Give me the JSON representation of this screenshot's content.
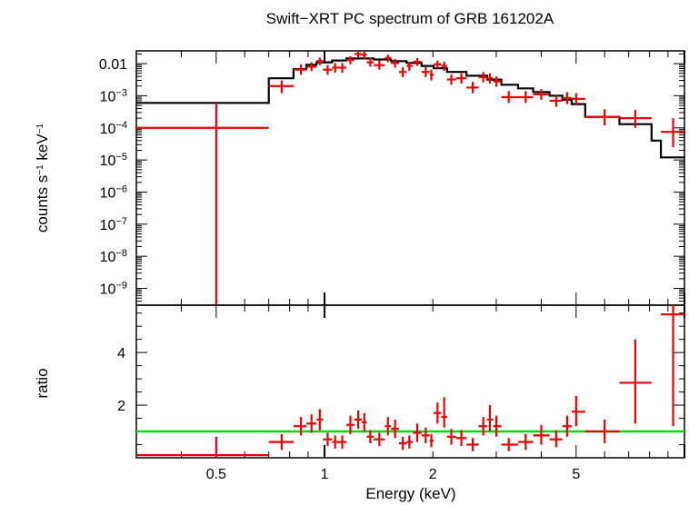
{
  "title": "Swift−XRT PC spectrum of GRB 161202A",
  "chart_data": [
    {
      "type": "scatter",
      "panel": "spectrum",
      "title": "Swift−XRT PC spectrum of GRB 161202A",
      "xlabel": "Energy (keV)",
      "ylabel_main": "counts s",
      "ylabel_sup1": "−1",
      "ylabel_mid": " keV",
      "ylabel_sup2": "−1",
      "xscale": "log",
      "yscale": "log",
      "xlim": [
        0.3,
        10
      ],
      "ylim": [
        3e-10,
        0.025
      ],
      "y_ticks": [
        {
          "value": 0.01,
          "mant": "0.01",
          "exp": ""
        },
        {
          "value": 0.001,
          "mant": "10",
          "exp": "−3"
        },
        {
          "value": 0.0001,
          "mant": "10",
          "exp": "−4"
        },
        {
          "value": 1e-05,
          "mant": "10",
          "exp": "−5"
        },
        {
          "value": 1e-06,
          "mant": "10",
          "exp": "−6"
        },
        {
          "value": 1e-07,
          "mant": "10",
          "exp": "−7"
        },
        {
          "value": 1e-08,
          "mant": "10",
          "exp": "−8"
        },
        {
          "value": 1e-09,
          "mant": "10",
          "exp": "−9"
        }
      ],
      "colors": {
        "data": "#ee0000",
        "model": "#000000"
      },
      "data_points": [
        {
          "x": 0.5,
          "xlo": 0.3,
          "xhi": 0.7,
          "y": 0.0001,
          "ylo": 3e-10,
          "yhi": 0.0006
        },
        {
          "x": 0.76,
          "xlo": 0.7,
          "xhi": 0.82,
          "y": 0.002,
          "ylo": 0.0012,
          "yhi": 0.003
        },
        {
          "x": 0.86,
          "xlo": 0.82,
          "xhi": 0.89,
          "y": 0.0065,
          "ylo": 0.0045,
          "yhi": 0.0095
        },
        {
          "x": 0.92,
          "xlo": 0.89,
          "xhi": 0.95,
          "y": 0.008,
          "ylo": 0.0058,
          "yhi": 0.011
        },
        {
          "x": 0.97,
          "xlo": 0.95,
          "xhi": 0.99,
          "y": 0.012,
          "ylo": 0.009,
          "yhi": 0.0155
        },
        {
          "x": 1.02,
          "xlo": 0.99,
          "xhi": 1.05,
          "y": 0.0065,
          "ylo": 0.0045,
          "yhi": 0.009
        },
        {
          "x": 1.07,
          "xlo": 1.05,
          "xhi": 1.09,
          "y": 0.0075,
          "ylo": 0.0052,
          "yhi": 0.0105
        },
        {
          "x": 1.12,
          "xlo": 1.09,
          "xhi": 1.15,
          "y": 0.0075,
          "ylo": 0.0052,
          "yhi": 0.0105
        },
        {
          "x": 1.18,
          "xlo": 1.15,
          "xhi": 1.21,
          "y": 0.013,
          "ylo": 0.0095,
          "yhi": 0.017
        },
        {
          "x": 1.24,
          "xlo": 1.21,
          "xhi": 1.27,
          "y": 0.02,
          "ylo": 0.015,
          "yhi": 0.025
        },
        {
          "x": 1.29,
          "xlo": 1.27,
          "xhi": 1.31,
          "y": 0.019,
          "ylo": 0.014,
          "yhi": 0.024
        },
        {
          "x": 1.34,
          "xlo": 1.31,
          "xhi": 1.37,
          "y": 0.011,
          "ylo": 0.008,
          "yhi": 0.015
        },
        {
          "x": 1.42,
          "xlo": 1.37,
          "xhi": 1.47,
          "y": 0.009,
          "ylo": 0.0065,
          "yhi": 0.0125
        },
        {
          "x": 1.5,
          "xlo": 1.47,
          "xhi": 1.53,
          "y": 0.015,
          "ylo": 0.011,
          "yhi": 0.019
        },
        {
          "x": 1.57,
          "xlo": 1.53,
          "xhi": 1.61,
          "y": 0.0105,
          "ylo": 0.0075,
          "yhi": 0.014
        },
        {
          "x": 1.65,
          "xlo": 1.61,
          "xhi": 1.69,
          "y": 0.0055,
          "ylo": 0.0038,
          "yhi": 0.0078
        },
        {
          "x": 1.72,
          "xlo": 1.69,
          "xhi": 1.76,
          "y": 0.0085,
          "ylo": 0.006,
          "yhi": 0.0115
        },
        {
          "x": 1.81,
          "xlo": 1.76,
          "xhi": 1.86,
          "y": 0.0115,
          "ylo": 0.0085,
          "yhi": 0.015
        },
        {
          "x": 1.91,
          "xlo": 1.86,
          "xhi": 1.96,
          "y": 0.0055,
          "ylo": 0.0038,
          "yhi": 0.0078
        },
        {
          "x": 1.98,
          "xlo": 1.96,
          "xhi": 2.01,
          "y": 0.0045,
          "ylo": 0.003,
          "yhi": 0.0065
        },
        {
          "x": 2.06,
          "xlo": 2.01,
          "xhi": 2.11,
          "y": 0.0095,
          "ylo": 0.007,
          "yhi": 0.0125
        },
        {
          "x": 2.15,
          "xlo": 2.11,
          "xhi": 2.19,
          "y": 0.0085,
          "ylo": 0.006,
          "yhi": 0.0115
        },
        {
          "x": 2.25,
          "xlo": 2.19,
          "xhi": 2.32,
          "y": 0.0032,
          "ylo": 0.0022,
          "yhi": 0.0046
        },
        {
          "x": 2.4,
          "xlo": 2.32,
          "xhi": 2.48,
          "y": 0.0035,
          "ylo": 0.0024,
          "yhi": 0.005
        },
        {
          "x": 2.58,
          "xlo": 2.48,
          "xhi": 2.68,
          "y": 0.0018,
          "ylo": 0.0012,
          "yhi": 0.0027
        },
        {
          "x": 2.76,
          "xlo": 2.68,
          "xhi": 2.83,
          "y": 0.0038,
          "ylo": 0.0026,
          "yhi": 0.0055
        },
        {
          "x": 2.88,
          "xlo": 2.83,
          "xhi": 2.94,
          "y": 0.0035,
          "ylo": 0.0024,
          "yhi": 0.005
        },
        {
          "x": 3.0,
          "xlo": 2.94,
          "xhi": 3.1,
          "y": 0.0028,
          "ylo": 0.0019,
          "yhi": 0.004
        },
        {
          "x": 3.25,
          "xlo": 3.1,
          "xhi": 3.45,
          "y": 0.0009,
          "ylo": 0.0006,
          "yhi": 0.0014
        },
        {
          "x": 3.62,
          "xlo": 3.45,
          "xhi": 3.8,
          "y": 0.0009,
          "ylo": 0.0006,
          "yhi": 0.0014
        },
        {
          "x": 4.0,
          "xlo": 3.8,
          "xhi": 4.22,
          "y": 0.0011,
          "ylo": 0.00075,
          "yhi": 0.0016
        },
        {
          "x": 4.4,
          "xlo": 4.22,
          "xhi": 4.58,
          "y": 0.0007,
          "ylo": 0.00045,
          "yhi": 0.0011
        },
        {
          "x": 4.72,
          "xlo": 4.58,
          "xhi": 4.86,
          "y": 0.00085,
          "ylo": 0.00055,
          "yhi": 0.0013
        },
        {
          "x": 5.0,
          "xlo": 4.86,
          "xhi": 5.3,
          "y": 0.0008,
          "ylo": 0.0005,
          "yhi": 0.0012
        },
        {
          "x": 6.0,
          "xlo": 5.3,
          "xhi": 6.6,
          "y": 0.00022,
          "ylo": 0.00012,
          "yhi": 0.00038
        },
        {
          "x": 7.3,
          "xlo": 6.6,
          "xhi": 8.1,
          "y": 0.0002,
          "ylo": 0.0001,
          "yhi": 0.00036
        },
        {
          "x": 9.3,
          "xlo": 8.6,
          "xhi": 10.0,
          "y": 7.5e-05,
          "ylo": 2.5e-05,
          "yhi": 0.0002
        }
      ],
      "model_steps": [
        {
          "xlo": 0.3,
          "xhi": 0.7,
          "y": 0.0006
        },
        {
          "xlo": 0.7,
          "xhi": 0.82,
          "y": 0.0035
        },
        {
          "xlo": 0.82,
          "xhi": 0.89,
          "y": 0.0068
        },
        {
          "xlo": 0.89,
          "xhi": 0.95,
          "y": 0.0092
        },
        {
          "xlo": 0.95,
          "xhi": 1.05,
          "y": 0.011
        },
        {
          "xlo": 1.05,
          "xhi": 1.15,
          "y": 0.0125
        },
        {
          "xlo": 1.15,
          "xhi": 1.37,
          "y": 0.0145
        },
        {
          "xlo": 1.37,
          "xhi": 1.53,
          "y": 0.0135
        },
        {
          "xlo": 1.53,
          "xhi": 1.69,
          "y": 0.012
        },
        {
          "xlo": 1.69,
          "xhi": 1.86,
          "y": 0.0105
        },
        {
          "xlo": 1.86,
          "xhi": 2.01,
          "y": 0.0085
        },
        {
          "xlo": 2.01,
          "xhi": 2.19,
          "y": 0.0072
        },
        {
          "xlo": 2.19,
          "xhi": 2.48,
          "y": 0.0055
        },
        {
          "xlo": 2.48,
          "xhi": 2.83,
          "y": 0.0042
        },
        {
          "xlo": 2.83,
          "xhi": 3.1,
          "y": 0.0032
        },
        {
          "xlo": 3.1,
          "xhi": 3.45,
          "y": 0.0022
        },
        {
          "xlo": 3.45,
          "xhi": 3.8,
          "y": 0.0017
        },
        {
          "xlo": 3.8,
          "xhi": 4.22,
          "y": 0.0013
        },
        {
          "xlo": 4.22,
          "xhi": 4.58,
          "y": 0.001
        },
        {
          "xlo": 4.58,
          "xhi": 4.86,
          "y": 0.00075
        },
        {
          "xlo": 4.86,
          "xhi": 5.3,
          "y": 0.00055
        },
        {
          "xlo": 5.3,
          "xhi": 6.6,
          "y": 0.00022
        },
        {
          "xlo": 6.6,
          "xhi": 8.1,
          "y": 0.00013
        },
        {
          "xlo": 8.1,
          "xhi": 8.6,
          "y": 4e-05
        },
        {
          "xlo": 8.6,
          "xhi": 10.0,
          "y": 1.2e-05
        }
      ]
    },
    {
      "type": "scatter",
      "panel": "ratio",
      "xlabel": "Energy (keV)",
      "ylabel": "ratio",
      "xscale": "log",
      "yscale": "linear",
      "xlim": [
        0.3,
        10
      ],
      "ylim": [
        0.0,
        5.8
      ],
      "y_ticks": [
        {
          "value": 2,
          "label": "2"
        },
        {
          "value": 4,
          "label": "4"
        }
      ],
      "x_ticks": [
        {
          "value": 0.5,
          "label": "0.5"
        },
        {
          "value": 1,
          "label": "1"
        },
        {
          "value": 2,
          "label": "2"
        },
        {
          "value": 5,
          "label": "5"
        }
      ],
      "reference_line": 1.0,
      "colors": {
        "data": "#ee0000",
        "reference": "#00dd00"
      },
      "data_points": [
        {
          "x": 0.5,
          "xlo": 0.3,
          "xhi": 0.7,
          "y": 0.1,
          "ylo": 0.0,
          "yhi": 0.8
        },
        {
          "x": 0.76,
          "xlo": 0.7,
          "xhi": 0.82,
          "y": 0.6,
          "ylo": 0.3,
          "yhi": 0.9
        },
        {
          "x": 0.86,
          "xlo": 0.82,
          "xhi": 0.89,
          "y": 1.2,
          "ylo": 0.85,
          "yhi": 1.55
        },
        {
          "x": 0.92,
          "xlo": 0.89,
          "xhi": 0.95,
          "y": 1.3,
          "ylo": 0.95,
          "yhi": 1.65
        },
        {
          "x": 0.97,
          "xlo": 0.95,
          "xhi": 0.99,
          "y": 1.45,
          "ylo": 1.05,
          "yhi": 1.85
        },
        {
          "x": 1.02,
          "xlo": 0.99,
          "xhi": 1.05,
          "y": 0.7,
          "ylo": 0.45,
          "yhi": 0.95
        },
        {
          "x": 1.07,
          "xlo": 1.05,
          "xhi": 1.09,
          "y": 0.6,
          "ylo": 0.35,
          "yhi": 0.85
        },
        {
          "x": 1.12,
          "xlo": 1.09,
          "xhi": 1.15,
          "y": 0.6,
          "ylo": 0.35,
          "yhi": 0.85
        },
        {
          "x": 1.18,
          "xlo": 1.15,
          "xhi": 1.21,
          "y": 1.25,
          "ylo": 0.9,
          "yhi": 1.6
        },
        {
          "x": 1.24,
          "xlo": 1.21,
          "xhi": 1.27,
          "y": 1.45,
          "ylo": 1.1,
          "yhi": 1.8
        },
        {
          "x": 1.29,
          "xlo": 1.27,
          "xhi": 1.31,
          "y": 1.35,
          "ylo": 1.0,
          "yhi": 1.7
        },
        {
          "x": 1.34,
          "xlo": 1.31,
          "xhi": 1.37,
          "y": 0.8,
          "ylo": 0.55,
          "yhi": 1.05
        },
        {
          "x": 1.42,
          "xlo": 1.37,
          "xhi": 1.47,
          "y": 0.7,
          "ylo": 0.45,
          "yhi": 0.95
        },
        {
          "x": 1.5,
          "xlo": 1.47,
          "xhi": 1.53,
          "y": 1.2,
          "ylo": 0.85,
          "yhi": 1.55
        },
        {
          "x": 1.57,
          "xlo": 1.53,
          "xhi": 1.61,
          "y": 1.1,
          "ylo": 0.75,
          "yhi": 1.45
        },
        {
          "x": 1.65,
          "xlo": 1.61,
          "xhi": 1.69,
          "y": 0.55,
          "ylo": 0.3,
          "yhi": 0.8
        },
        {
          "x": 1.72,
          "xlo": 1.69,
          "xhi": 1.76,
          "y": 0.6,
          "ylo": 0.35,
          "yhi": 0.85
        },
        {
          "x": 1.81,
          "xlo": 1.76,
          "xhi": 1.86,
          "y": 0.95,
          "ylo": 0.6,
          "yhi": 1.3
        },
        {
          "x": 1.91,
          "xlo": 1.86,
          "xhi": 1.96,
          "y": 0.85,
          "ylo": 0.55,
          "yhi": 1.15
        },
        {
          "x": 1.98,
          "xlo": 1.96,
          "xhi": 2.01,
          "y": 0.65,
          "ylo": 0.4,
          "yhi": 0.9
        },
        {
          "x": 2.06,
          "xlo": 2.01,
          "xhi": 2.11,
          "y": 1.7,
          "ylo": 1.3,
          "yhi": 2.1
        },
        {
          "x": 2.15,
          "xlo": 2.11,
          "xhi": 2.19,
          "y": 1.55,
          "ylo": 1.15,
          "yhi": 2.3
        },
        {
          "x": 2.25,
          "xlo": 2.19,
          "xhi": 2.32,
          "y": 0.8,
          "ylo": 0.5,
          "yhi": 1.1
        },
        {
          "x": 2.4,
          "xlo": 2.32,
          "xhi": 2.48,
          "y": 0.75,
          "ylo": 0.45,
          "yhi": 1.05
        },
        {
          "x": 2.58,
          "xlo": 2.48,
          "xhi": 2.68,
          "y": 0.5,
          "ylo": 0.25,
          "yhi": 0.75
        },
        {
          "x": 2.76,
          "xlo": 2.68,
          "xhi": 2.83,
          "y": 1.2,
          "ylo": 0.85,
          "yhi": 1.55
        },
        {
          "x": 2.88,
          "xlo": 2.83,
          "xhi": 2.94,
          "y": 1.45,
          "ylo": 1.0,
          "yhi": 2.0
        },
        {
          "x": 3.0,
          "xlo": 2.94,
          "xhi": 3.1,
          "y": 1.2,
          "ylo": 0.8,
          "yhi": 1.6
        },
        {
          "x": 3.25,
          "xlo": 3.1,
          "xhi": 3.45,
          "y": 0.5,
          "ylo": 0.25,
          "yhi": 0.75
        },
        {
          "x": 3.62,
          "xlo": 3.45,
          "xhi": 3.8,
          "y": 0.6,
          "ylo": 0.3,
          "yhi": 0.9
        },
        {
          "x": 4.0,
          "xlo": 3.8,
          "xhi": 4.22,
          "y": 0.85,
          "ylo": 0.5,
          "yhi": 1.25
        },
        {
          "x": 4.4,
          "xlo": 4.22,
          "xhi": 4.58,
          "y": 0.7,
          "ylo": 0.4,
          "yhi": 1.05
        },
        {
          "x": 4.72,
          "xlo": 4.58,
          "xhi": 4.86,
          "y": 1.2,
          "ylo": 0.8,
          "yhi": 1.6
        },
        {
          "x": 5.0,
          "xlo": 4.86,
          "xhi": 5.3,
          "y": 1.75,
          "ylo": 1.2,
          "yhi": 2.35
        },
        {
          "x": 6.0,
          "xlo": 5.3,
          "xhi": 6.6,
          "y": 1.0,
          "ylo": 0.55,
          "yhi": 1.45
        },
        {
          "x": 7.3,
          "xlo": 6.6,
          "xhi": 8.1,
          "y": 2.85,
          "ylo": 1.3,
          "yhi": 4.5
        },
        {
          "x": 9.3,
          "xlo": 8.6,
          "xhi": 10.0,
          "y": 5.45,
          "ylo": 1.2,
          "yhi": 5.8
        }
      ]
    }
  ]
}
